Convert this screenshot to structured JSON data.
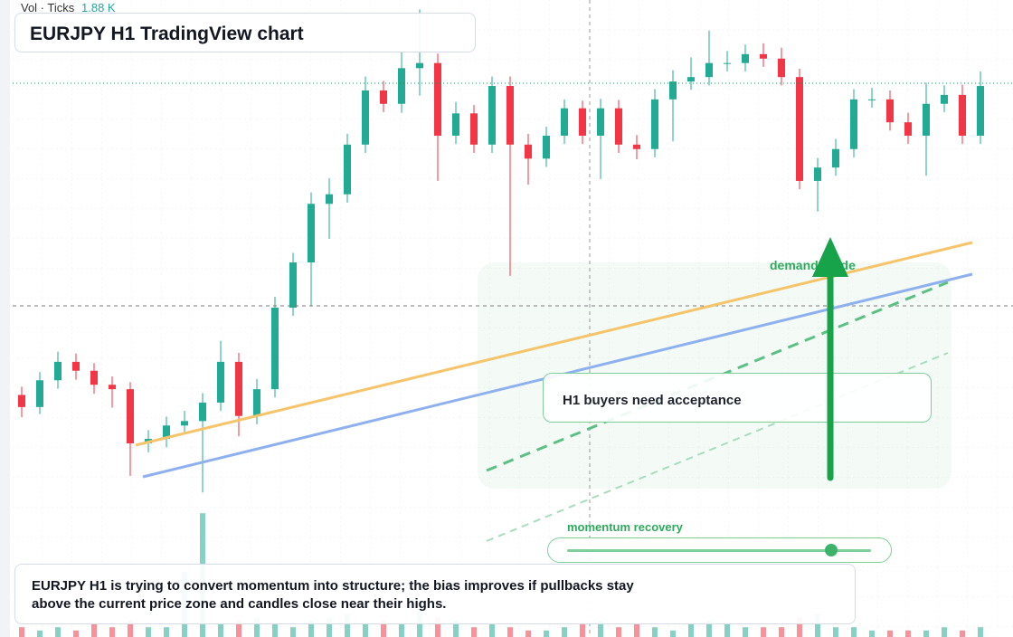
{
  "chart_data": {
    "type": "candlestick",
    "title": "EURJPY H1 TradingView chart",
    "volume_label": "Vol · Ticks",
    "volume_value": "1.88 K",
    "up_color": "#22ab94",
    "down_color": "#f23645",
    "ylim": [
      0,
      100
    ],
    "volume_lim": [
      0,
      5
    ],
    "open": [
      38.0,
      36.1,
      40.3,
      43.2,
      41.8,
      39.6,
      38.9,
      30.4,
      31.1,
      33.2,
      33.9,
      36.8,
      43.2,
      34.7,
      38.9,
      51.7,
      58.8,
      68.0,
      69.5,
      77.3,
      85.8,
      83.7,
      89.3,
      90.1,
      78.7,
      82.2,
      77.3,
      86.5,
      77.3,
      75.1,
      78.7,
      83.0,
      78.7,
      83.0,
      77.3,
      76.6,
      84.4,
      87.2,
      87.9,
      90.1,
      90.1,
      91.5,
      90.8,
      87.9,
      71.6,
      73.7,
      76.6,
      84.4,
      84.4,
      80.8,
      78.7,
      83.7,
      85.1,
      78.7
    ],
    "high": [
      39.3,
      41.6,
      44.8,
      44.5,
      43.0,
      40.9,
      40.0,
      32.5,
      34.6,
      35.5,
      38.3,
      46.5,
      44.6,
      40.5,
      53.4,
      60.3,
      69.8,
      72.0,
      79.0,
      88.0,
      87.3,
      92.0,
      98.5,
      91.6,
      84.0,
      83.5,
      88.0,
      88.0,
      79.0,
      80.1,
      84.4,
      84.2,
      84.5,
      84.3,
      78.8,
      86.0,
      89.0,
      91.0,
      95.2,
      92.0,
      93.0,
      93.2,
      92.5,
      89.2,
      75.2,
      78.2,
      86.0,
      86.2,
      85.8,
      82.3,
      87.0,
      86.6,
      86.7,
      88.8
    ],
    "low": [
      34.5,
      35.0,
      39.0,
      40.4,
      38.2,
      36.0,
      25.3,
      29.0,
      29.8,
      31.9,
      22.7,
      35.5,
      31.5,
      33.4,
      37.6,
      50.4,
      52.0,
      62.5,
      68.2,
      76.0,
      82.4,
      82.3,
      85.0,
      71.6,
      77.4,
      76.0,
      76.0,
      56.7,
      71.0,
      73.8,
      77.4,
      77.4,
      71.9,
      76.0,
      75.0,
      75.3,
      77.8,
      85.9,
      86.6,
      88.8,
      88.8,
      89.5,
      86.6,
      70.3,
      66.8,
      72.4,
      75.3,
      83.1,
      79.5,
      77.4,
      72.4,
      82.4,
      77.4,
      77.4
    ],
    "close": [
      36.1,
      40.3,
      43.2,
      41.8,
      39.6,
      38.9,
      30.4,
      31.1,
      33.2,
      33.9,
      36.8,
      43.2,
      34.7,
      38.9,
      51.7,
      58.8,
      68.0,
      69.5,
      77.3,
      85.8,
      83.7,
      89.3,
      90.1,
      78.7,
      82.2,
      77.3,
      86.5,
      77.3,
      75.1,
      78.7,
      83.0,
      78.7,
      83.0,
      77.3,
      76.6,
      84.4,
      87.2,
      87.9,
      90.1,
      90.1,
      91.5,
      90.8,
      87.9,
      71.6,
      73.7,
      76.6,
      84.4,
      84.4,
      80.8,
      78.7,
      83.7,
      85.1,
      78.7,
      86.5
    ],
    "volume": [
      0.3,
      0.2,
      0.3,
      0.2,
      0.4,
      0.3,
      0.5,
      0.3,
      0.3,
      2.0,
      3.8,
      0.4,
      0.5,
      0.6,
      0.4,
      0.3,
      0.5,
      0.6,
      0.7,
      0.4,
      0.5,
      0.4,
      0.8,
      0.6,
      0.5,
      0.3,
      0.4,
      0.3,
      0.2,
      0.2,
      0.3,
      0.4,
      0.5,
      0.3,
      0.4,
      0.3,
      0.2,
      0.4,
      0.5,
      0.4,
      0.3,
      0.3,
      0.3,
      0.6,
      0.7,
      0.3,
      0.3,
      0.2,
      0.2,
      0.2,
      0.2,
      0.3,
      0.2,
      0.3
    ],
    "annotations": {
      "demand_guide": "demand guide",
      "callout": "H1 buyers need acceptance",
      "momentum": "momentum recovery",
      "summary": [
        "EURJPY H1 is trying to convert momentum into structure; the bias improves if pullbacks stay",
        "above the current price zone and candles close near their highs."
      ]
    }
  }
}
